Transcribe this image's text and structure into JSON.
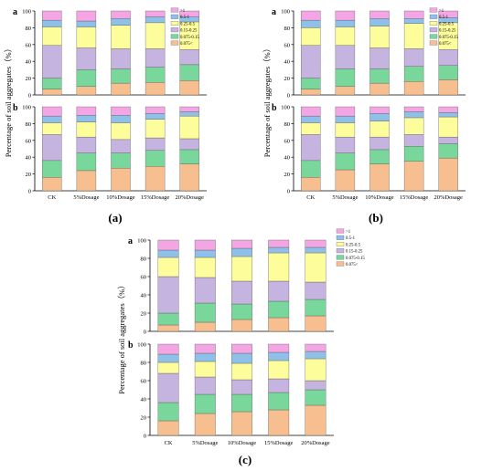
{
  "figure": {
    "panel_captions": [
      "(a)",
      "(b)",
      "(c)"
    ],
    "sub_labels": [
      "a",
      "b"
    ]
  },
  "chart_data": [
    {
      "panel": "(a)",
      "sub": "a",
      "type": "bar",
      "stacked": true,
      "categories": [
        "CK",
        "5%Dosage",
        "10%Dosage",
        "15%Dosage",
        "20%Dosage"
      ],
      "ylabel": "Percentage of soil aggregates（%）",
      "ylim": [
        0,
        100
      ],
      "yticks": [
        0,
        20,
        40,
        60,
        80,
        100
      ],
      "legend": "top-right",
      "series": [
        {
          "name": "0.075<",
          "color": "#f7bf8f",
          "values": [
            7,
            10,
            14,
            15,
            17
          ]
        },
        {
          "name": "0.075-0.15",
          "color": "#79d79b",
          "values": [
            13,
            20,
            17,
            18,
            19
          ]
        },
        {
          "name": "0.15-0.25",
          "color": "#c5b3e0",
          "values": [
            39,
            26,
            24,
            22,
            18
          ]
        },
        {
          "name": "0.25-0.5",
          "color": "#fdfd9c",
          "values": [
            22,
            25,
            28,
            31,
            33
          ]
        },
        {
          "name": "0.5-1",
          "color": "#8fc0ea",
          "values": [
            8,
            7,
            8,
            7,
            6
          ]
        },
        {
          "name": ">1",
          "color": "#f4a6e4",
          "values": [
            11,
            12,
            9,
            7,
            7
          ]
        }
      ]
    },
    {
      "panel": "(a)",
      "sub": "b",
      "type": "bar",
      "stacked": true,
      "categories": [
        "CK",
        "5%Dosage",
        "10%Dosage",
        "15%Dosage",
        "20%Dosage"
      ],
      "ylim": [
        0,
        100
      ],
      "yticks": [
        0,
        20,
        40,
        60,
        80,
        100
      ],
      "series": [
        {
          "name": "0.075<",
          "color": "#f7bf8f",
          "values": [
            16,
            24,
            27,
            29,
            32
          ]
        },
        {
          "name": "0.075-0.15",
          "color": "#79d79b",
          "values": [
            20,
            21,
            18,
            19,
            17
          ]
        },
        {
          "name": "0.15-0.25",
          "color": "#c5b3e0",
          "values": [
            31,
            19,
            16,
            15,
            13
          ]
        },
        {
          "name": "0.25-0.5",
          "color": "#fdfd9c",
          "values": [
            14,
            18,
            20,
            22,
            27
          ]
        },
        {
          "name": "0.5-1",
          "color": "#8fc0ea",
          "values": [
            8,
            8,
            9,
            7,
            5
          ]
        },
        {
          "name": ">1",
          "color": "#f4a6e4",
          "values": [
            11,
            10,
            10,
            8,
            6
          ]
        }
      ]
    },
    {
      "panel": "(b)",
      "sub": "a",
      "type": "bar",
      "stacked": true,
      "categories": [
        "CK",
        "5%Dosage",
        "10%Dosage",
        "15%Dosage",
        "20%Dosage"
      ],
      "ylabel": "Percentage of soil aggregates（%）",
      "ylim": [
        0,
        100
      ],
      "yticks": [
        0,
        20,
        40,
        60,
        80,
        100
      ],
      "legend": "top-right",
      "series": [
        {
          "name": "0.075<",
          "color": "#f7bf8f",
          "values": [
            7,
            10,
            14,
            16,
            18
          ]
        },
        {
          "name": "0.075-0.15",
          "color": "#79d79b",
          "values": [
            13,
            21,
            17,
            18,
            17
          ]
        },
        {
          "name": "0.15-0.25",
          "color": "#c5b3e0",
          "values": [
            39,
            28,
            25,
            21,
            19
          ]
        },
        {
          "name": "0.25-0.5",
          "color": "#fdfd9c",
          "values": [
            21,
            22,
            26,
            30,
            32
          ]
        },
        {
          "name": "0.5-1",
          "color": "#8fc0ea",
          "values": [
            9,
            8,
            9,
            6,
            6
          ]
        },
        {
          "name": ">1",
          "color": "#f4a6e4",
          "values": [
            11,
            11,
            9,
            9,
            8
          ]
        }
      ]
    },
    {
      "panel": "(b)",
      "sub": "b",
      "type": "bar",
      "stacked": true,
      "categories": [
        "CK",
        "5%Dosage",
        "10%Dosage",
        "15%Dosage",
        "20%Dosage"
      ],
      "ylim": [
        0,
        100
      ],
      "yticks": [
        0,
        20,
        40,
        60,
        80,
        100
      ],
      "series": [
        {
          "name": "0.075<",
          "color": "#f7bf8f",
          "values": [
            16,
            25,
            32,
            35,
            39
          ]
        },
        {
          "name": "0.075-0.15",
          "color": "#79d79b",
          "values": [
            20,
            20,
            17,
            18,
            17
          ]
        },
        {
          "name": "0.15-0.25",
          "color": "#c5b3e0",
          "values": [
            31,
            19,
            15,
            14,
            8
          ]
        },
        {
          "name": "0.25-0.5",
          "color": "#fdfd9c",
          "values": [
            14,
            17,
            19,
            20,
            24
          ]
        },
        {
          "name": "0.5-1",
          "color": "#8fc0ea",
          "values": [
            8,
            8,
            9,
            7,
            5
          ]
        },
        {
          "name": ">1",
          "color": "#f4a6e4",
          "values": [
            11,
            11,
            8,
            6,
            7
          ]
        }
      ]
    },
    {
      "panel": "(c)",
      "sub": "a",
      "type": "bar",
      "stacked": true,
      "categories": [
        "CK",
        "5%Dosage",
        "10%Dosage",
        "15%Dosage",
        "20%Dosage"
      ],
      "ylabel": "Percentage of soil aggregates（%）",
      "ylim": [
        0,
        100
      ],
      "yticks": [
        0,
        20,
        40,
        60,
        80,
        100
      ],
      "legend": "top-right",
      "series": [
        {
          "name": "0.075<",
          "color": "#f7bf8f",
          "values": [
            7,
            10,
            13,
            15,
            17
          ]
        },
        {
          "name": "0.075-0.15",
          "color": "#79d79b",
          "values": [
            13,
            21,
            17,
            18,
            18
          ]
        },
        {
          "name": "0.15-0.25",
          "color": "#c5b3e0",
          "values": [
            40,
            28,
            25,
            22,
            19
          ]
        },
        {
          "name": "0.25-0.5",
          "color": "#fdfd9c",
          "values": [
            21,
            22,
            27,
            31,
            32
          ]
        },
        {
          "name": "0.5-1",
          "color": "#8fc0ea",
          "values": [
            8,
            8,
            9,
            6,
            6
          ]
        },
        {
          "name": ">1",
          "color": "#f4a6e4",
          "values": [
            11,
            11,
            9,
            8,
            8
          ]
        }
      ]
    },
    {
      "panel": "(c)",
      "sub": "b",
      "type": "bar",
      "stacked": true,
      "categories": [
        "CK",
        "5%Dosage",
        "10%Dosage",
        "15%Dosage",
        "20%Dosage"
      ],
      "ylim": [
        0,
        100
      ],
      "yticks": [
        0,
        20,
        40,
        60,
        80,
        100
      ],
      "series": [
        {
          "name": "0.075<",
          "color": "#f7bf8f",
          "values": [
            16,
            24,
            26,
            28,
            33
          ]
        },
        {
          "name": "0.075-0.15",
          "color": "#79d79b",
          "values": [
            20,
            21,
            19,
            19,
            17
          ]
        },
        {
          "name": "0.15-0.25",
          "color": "#c5b3e0",
          "values": [
            32,
            19,
            16,
            15,
            10
          ]
        },
        {
          "name": "0.25-0.5",
          "color": "#fdfd9c",
          "values": [
            12,
            17,
            18,
            20,
            24
          ]
        },
        {
          "name": "0.5-1",
          "color": "#8fc0ea",
          "values": [
            9,
            9,
            11,
            9,
            8
          ]
        },
        {
          "name": ">1",
          "color": "#f4a6e4",
          "values": [
            11,
            10,
            10,
            9,
            8
          ]
        }
      ]
    }
  ]
}
